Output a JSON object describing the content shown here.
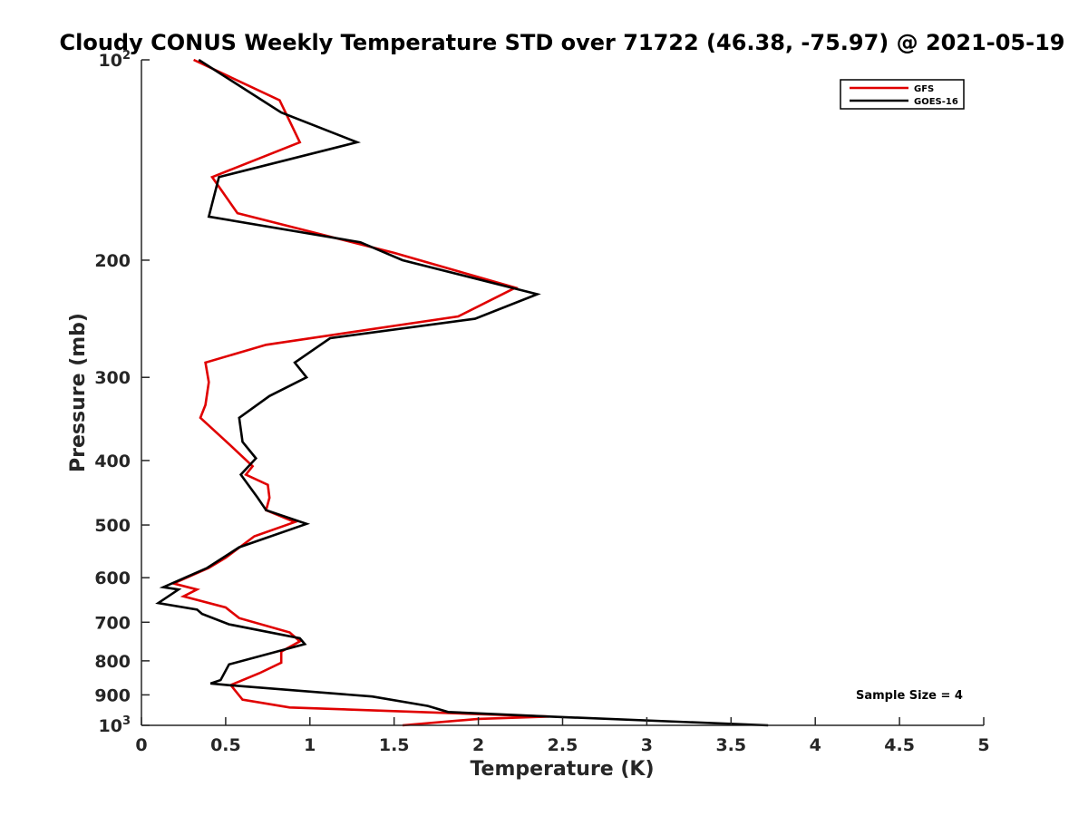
{
  "chart_data": {
    "type": "line",
    "title": "Cloudy CONUS Weekly Temperature STD over 71722 (46.38, -75.97) @ 2021-05-19",
    "xlabel": "Temperature (K)",
    "ylabel": "Pressure (mb)",
    "xlim": [
      0,
      5
    ],
    "ylim": [
      100,
      1000
    ],
    "y_scale": "log",
    "y_reversed": true,
    "x_ticks": [
      "0",
      "0.5",
      "1",
      "1.5",
      "2",
      "2.5",
      "3",
      "3.5",
      "4",
      "4.5",
      "5"
    ],
    "y_ticks": [
      {
        "value": 100,
        "label": "10",
        "sup": "2"
      },
      {
        "value": 200,
        "label": "200",
        "sup": ""
      },
      {
        "value": 300,
        "label": "300",
        "sup": ""
      },
      {
        "value": 400,
        "label": "400",
        "sup": ""
      },
      {
        "value": 500,
        "label": "500",
        "sup": ""
      },
      {
        "value": 600,
        "label": "600",
        "sup": ""
      },
      {
        "value": 700,
        "label": "700",
        "sup": ""
      },
      {
        "value": 800,
        "label": "800",
        "sup": ""
      },
      {
        "value": 900,
        "label": "900",
        "sup": ""
      },
      {
        "value": 1000,
        "label": "10",
        "sup": "3"
      }
    ],
    "legend_position": "top-right",
    "annotation": "Sample Size = 4",
    "series": [
      {
        "name": "GFS",
        "color": "#e00000",
        "points": [
          [
            0.31,
            100
          ],
          [
            0.82,
            115
          ],
          [
            0.94,
            133
          ],
          [
            0.42,
            150
          ],
          [
            0.57,
            170
          ],
          [
            1.5,
            195
          ],
          [
            2.22,
            220
          ],
          [
            1.88,
            243
          ],
          [
            0.74,
            268
          ],
          [
            0.38,
            285
          ],
          [
            0.4,
            305
          ],
          [
            0.38,
            330
          ],
          [
            0.35,
            345
          ],
          [
            0.53,
            380
          ],
          [
            0.66,
            408
          ],
          [
            0.62,
            420
          ],
          [
            0.75,
            435
          ],
          [
            0.76,
            455
          ],
          [
            0.74,
            475
          ],
          [
            0.91,
            495
          ],
          [
            0.67,
            520
          ],
          [
            0.5,
            560
          ],
          [
            0.4,
            580
          ],
          [
            0.19,
            612
          ],
          [
            0.33,
            625
          ],
          [
            0.25,
            640
          ],
          [
            0.5,
            665
          ],
          [
            0.58,
            690
          ],
          [
            0.88,
            725
          ],
          [
            0.94,
            748
          ],
          [
            0.83,
            775
          ],
          [
            0.83,
            805
          ],
          [
            0.7,
            835
          ],
          [
            0.53,
            870
          ],
          [
            0.6,
            915
          ],
          [
            0.88,
            940
          ],
          [
            2.42,
            970
          ],
          [
            2.0,
            978
          ],
          [
            1.55,
            1000
          ]
        ]
      },
      {
        "name": "GOES-16",
        "color": "#000000",
        "points": [
          [
            0.34,
            100
          ],
          [
            0.83,
            120
          ],
          [
            1.28,
            133
          ],
          [
            0.46,
            150
          ],
          [
            0.4,
            172
          ],
          [
            1.3,
            188
          ],
          [
            1.55,
            200
          ],
          [
            2.35,
            225
          ],
          [
            1.98,
            245
          ],
          [
            1.12,
            262
          ],
          [
            0.91,
            285
          ],
          [
            0.98,
            300
          ],
          [
            0.76,
            320
          ],
          [
            0.58,
            345
          ],
          [
            0.6,
            375
          ],
          [
            0.68,
            397
          ],
          [
            0.59,
            420
          ],
          [
            0.69,
            455
          ],
          [
            0.74,
            475
          ],
          [
            0.98,
            498
          ],
          [
            0.58,
            540
          ],
          [
            0.39,
            580
          ],
          [
            0.13,
            620
          ],
          [
            0.22,
            625
          ],
          [
            0.1,
            655
          ],
          [
            0.33,
            670
          ],
          [
            0.36,
            680
          ],
          [
            0.52,
            705
          ],
          [
            0.94,
            740
          ],
          [
            0.97,
            755
          ],
          [
            0.52,
            810
          ],
          [
            0.47,
            855
          ],
          [
            0.41,
            865
          ],
          [
            0.51,
            870
          ],
          [
            1.37,
            905
          ],
          [
            1.7,
            935
          ],
          [
            1.82,
            955
          ],
          [
            2.42,
            970
          ],
          [
            3.72,
            1000
          ]
        ]
      }
    ]
  }
}
